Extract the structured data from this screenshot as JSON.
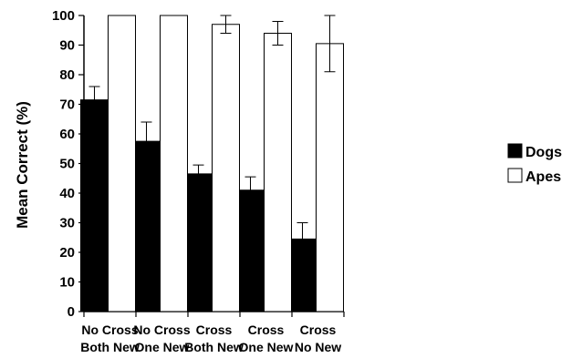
{
  "chart_data": {
    "type": "bar",
    "ylabel": "Mean Correct (%)",
    "ylim": [
      0,
      100
    ],
    "yticks": [
      0,
      10,
      20,
      30,
      40,
      50,
      60,
      70,
      80,
      90,
      100
    ],
    "categories": [
      [
        "No Cross",
        "Both New"
      ],
      [
        "No Cross",
        "One New"
      ],
      [
        "Cross",
        "Both New"
      ],
      [
        "Cross",
        "One New"
      ],
      [
        "Cross",
        "No New"
      ]
    ],
    "series": [
      {
        "name": "Dogs",
        "color": "#000000",
        "values": [
          71.5,
          57.5,
          46.5,
          41,
          24.5
        ],
        "error": [
          4.5,
          6.5,
          3,
          4.5,
          5.5
        ]
      },
      {
        "name": "Apes",
        "color": "#ffffff",
        "values": [
          100,
          100,
          97,
          94,
          90.5
        ],
        "error": [
          0,
          0,
          3,
          4,
          9.5
        ]
      }
    ],
    "legend": "right",
    "grid": false
  }
}
